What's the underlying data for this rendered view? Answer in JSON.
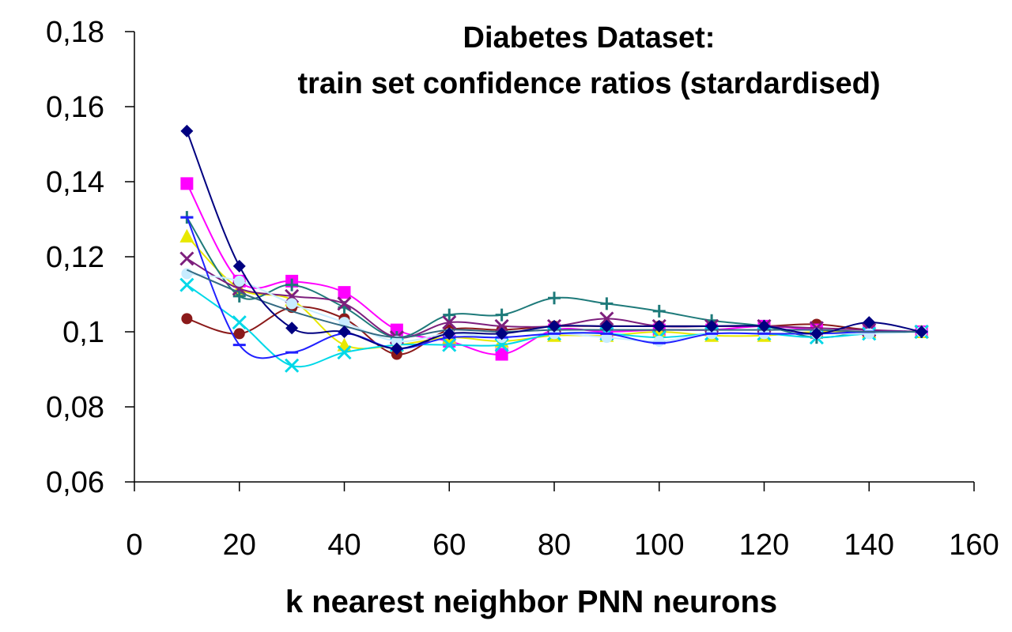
{
  "chart_data": {
    "type": "line",
    "title_line1": "Diabetes Dataset:",
    "title_line2": "train set confidence ratios (stardardised)",
    "xlabel": "k nearest neighbor PNN neurons",
    "ylabel": "",
    "xlim": [
      0,
      160
    ],
    "ylim": [
      0.06,
      0.18
    ],
    "x_ticks": [
      0,
      20,
      40,
      60,
      80,
      100,
      120,
      140,
      160
    ],
    "x_tick_labels": [
      "0",
      "20",
      "40",
      "60",
      "80",
      "100",
      "120",
      "140",
      "160"
    ],
    "y_ticks": [
      0.06,
      0.08,
      0.1,
      0.12,
      0.14,
      0.16,
      0.18
    ],
    "y_tick_labels": [
      "0,06",
      "0,08",
      "0,1",
      "0,12",
      "0,14",
      "0,16",
      "0,18"
    ],
    "grid": false,
    "legend": "none",
    "x": [
      10,
      20,
      30,
      40,
      50,
      60,
      70,
      80,
      90,
      100,
      110,
      120,
      130,
      140,
      150
    ],
    "series": [
      {
        "color": "#8b1a1a",
        "marker": "circle",
        "values": [
          0.1035,
          0.0995,
          0.1065,
          0.1035,
          0.094,
          0.1005,
          0.1005,
          0.1015,
          0.1015,
          0.1015,
          0.1015,
          0.1015,
          0.102,
          0.1005,
          0.1
        ]
      },
      {
        "color": "#ff00ff",
        "marker": "square",
        "values": [
          0.1395,
          0.1135,
          0.1135,
          0.1105,
          0.1005,
          0.0975,
          0.094,
          0.1005,
          0.1,
          0.1005,
          0.1005,
          0.1015,
          0.1005,
          0.1,
          0.1
        ]
      },
      {
        "color": "#e8e800",
        "marker": "triangle",
        "values": [
          0.1255,
          0.1115,
          0.1085,
          0.0965,
          0.0965,
          0.0985,
          0.0975,
          0.099,
          0.099,
          0.1,
          0.099,
          0.099,
          0.1,
          0.1,
          0.1
        ]
      },
      {
        "color": "#1e7a7a",
        "marker": "plus",
        "values": [
          0.1305,
          0.1095,
          0.1125,
          0.1065,
          0.0985,
          0.1045,
          0.1045,
          0.109,
          0.1075,
          0.1055,
          0.103,
          0.1015,
          0.0985,
          0.1,
          0.1
        ]
      },
      {
        "color": "#7d1f7d",
        "marker": "x",
        "values": [
          0.1195,
          0.1115,
          0.1095,
          0.1075,
          0.0985,
          0.1025,
          0.1015,
          0.1015,
          0.1035,
          0.1015,
          0.1015,
          0.1015,
          0.101,
          0.1005,
          0.1
        ]
      },
      {
        "color": "#00d8e8",
        "marker": "cross",
        "values": [
          0.1125,
          0.1025,
          0.091,
          0.0945,
          0.0965,
          0.0965,
          0.0965,
          0.0995,
          0.0995,
          0.0985,
          0.0995,
          0.0995,
          0.0985,
          0.0995,
          0.1
        ]
      },
      {
        "color": "#c8ecff",
        "marker": "circle-small",
        "values": [
          0.1155,
          0.1135,
          0.1075,
          0.1025,
          0.0975,
          0.0995,
          0.0985,
          0.0995,
          0.0985,
          0.0975,
          0.0995,
          0.0995,
          0.0995,
          0.0995,
          0.1
        ]
      },
      {
        "color": "#2020ff",
        "marker": "dash",
        "values": [
          0.1305,
          0.0965,
          0.0945,
          0.0995,
          0.0955,
          0.0985,
          0.0985,
          0.0995,
          0.0995,
          0.097,
          0.0995,
          0.0995,
          0.0995,
          0.1,
          0.1
        ]
      },
      {
        "color": "#336a82",
        "marker": "line-only",
        "values": [
          0.1165,
          0.1105,
          0.1055,
          0.1015,
          0.0985,
          0.1005,
          0.1,
          0.1005,
          0.1005,
          0.1005,
          0.1005,
          0.1005,
          0.1005,
          0.1,
          0.1
        ]
      },
      {
        "color": "#000080",
        "marker": "diamond",
        "values": [
          0.1535,
          0.1175,
          0.101,
          0.1,
          0.0955,
          0.0995,
          0.0995,
          0.1015,
          0.1015,
          0.1015,
          0.1015,
          0.1015,
          0.0995,
          0.1025,
          0.1
        ]
      }
    ]
  }
}
